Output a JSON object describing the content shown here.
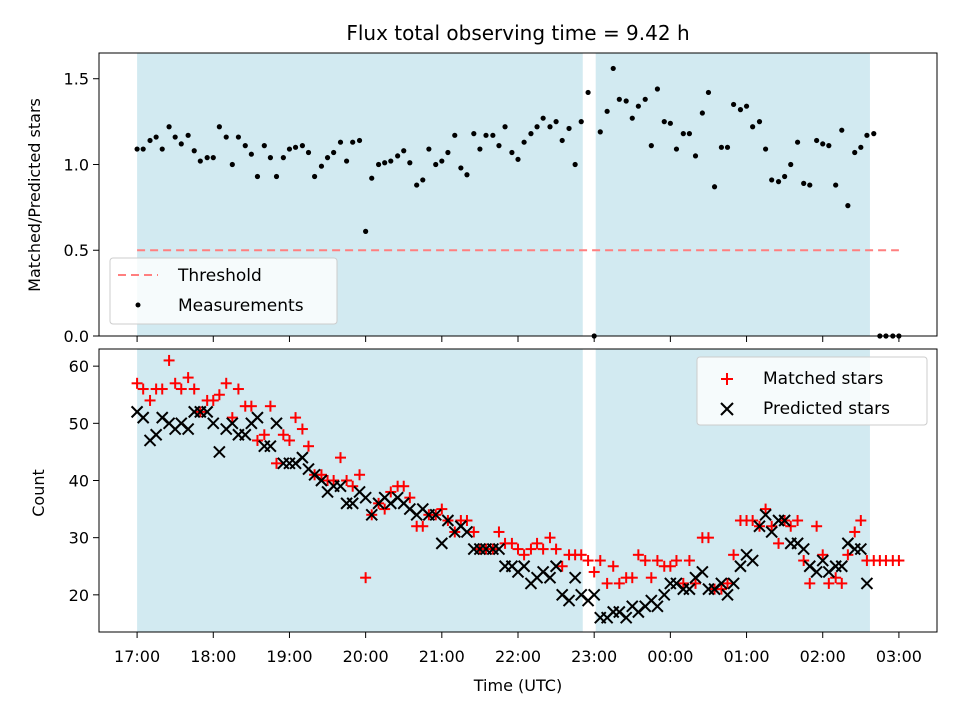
{
  "figure": {
    "title": "Flux total observing time = 9.42 h",
    "xlabel": "Time (UTC)",
    "x_ticks": [
      "17:00",
      "18:00",
      "19:00",
      "20:00",
      "21:00",
      "22:00",
      "23:00",
      "00:00",
      "01:00",
      "02:00",
      "03:00"
    ],
    "x_range_hours": [
      16.5,
      27.5
    ],
    "colors": {
      "shade": "#add8e6",
      "threshold": "#ff7f7f",
      "matched": "#ff0000",
      "predicted": "#000000",
      "measure": "#000000"
    }
  },
  "chart_data": [
    {
      "type": "scatter",
      "name": "ratio",
      "ylabel": "Matched/Predicted stars",
      "ylim": [
        0,
        1.65
      ],
      "y_ticks": [
        "0.0",
        "0.5",
        "1.0",
        "1.5"
      ],
      "y_tick_values": [
        0,
        0.5,
        1.0,
        1.5
      ],
      "shaded_intervals_hours": [
        [
          17.0,
          22.85
        ],
        [
          23.02,
          26.62
        ]
      ],
      "threshold": {
        "label": "Threshold",
        "value": 0.5,
        "x_range_hours": [
          17.0,
          27.0
        ]
      },
      "measurement_label": "Measurements",
      "measurements": {
        "t": [
          17.0,
          17.08,
          17.17,
          17.25,
          17.33,
          17.42,
          17.5,
          17.58,
          17.67,
          17.75,
          17.83,
          17.92,
          18.0,
          18.08,
          18.17,
          18.25,
          18.33,
          18.42,
          18.5,
          18.58,
          18.67,
          18.75,
          18.83,
          18.92,
          19.0,
          19.08,
          19.17,
          19.25,
          19.33,
          19.42,
          19.5,
          19.58,
          19.67,
          19.75,
          19.83,
          19.92,
          20.0,
          20.08,
          20.17,
          20.25,
          20.33,
          20.42,
          20.5,
          20.58,
          20.67,
          20.75,
          20.83,
          20.92,
          21.0,
          21.08,
          21.17,
          21.25,
          21.33,
          21.42,
          21.5,
          21.58,
          21.67,
          21.75,
          21.83,
          21.92,
          22.0,
          22.08,
          22.17,
          22.25,
          22.33,
          22.42,
          22.5,
          22.58,
          22.67,
          22.75,
          22.83,
          22.92,
          23.0,
          23.08,
          23.17,
          23.25,
          23.33,
          23.42,
          23.5,
          23.58,
          23.67,
          23.75,
          23.83,
          23.92,
          24.0,
          24.08,
          24.17,
          24.25,
          24.33,
          24.42,
          24.5,
          24.58,
          24.67,
          24.75,
          24.83,
          24.92,
          25.0,
          25.08,
          25.17,
          25.25,
          25.33,
          25.42,
          25.5,
          25.58,
          25.67,
          25.75,
          25.83,
          25.92,
          26.0,
          26.08,
          26.17,
          26.25,
          26.33,
          26.42,
          26.5,
          26.58,
          26.67,
          26.75,
          26.83,
          26.92,
          27.0
        ],
        "y": [
          1.09,
          1.09,
          1.14,
          1.16,
          1.09,
          1.22,
          1.16,
          1.12,
          1.17,
          1.08,
          1.02,
          1.04,
          1.04,
          1.22,
          1.16,
          1.0,
          1.16,
          1.11,
          1.06,
          0.93,
          1.11,
          1.04,
          0.93,
          1.04,
          1.09,
          1.1,
          1.11,
          1.07,
          0.93,
          0.99,
          1.04,
          1.07,
          1.13,
          1.02,
          1.13,
          1.14,
          0.61,
          0.92,
          1.0,
          1.01,
          1.02,
          1.05,
          1.08,
          1.01,
          0.88,
          0.91,
          1.09,
          1.0,
          1.02,
          1.07,
          1.17,
          0.98,
          0.94,
          1.18,
          1.09,
          1.17,
          1.17,
          1.11,
          1.22,
          1.07,
          1.03,
          1.13,
          1.18,
          1.22,
          1.27,
          1.22,
          1.25,
          1.14,
          1.21,
          1.0,
          1.25,
          1.42,
          0.0,
          1.19,
          1.31,
          1.56,
          1.38,
          1.37,
          1.27,
          1.34,
          1.38,
          1.11,
          1.44,
          1.25,
          1.24,
          1.09,
          1.18,
          1.18,
          1.05,
          1.3,
          1.42,
          0.87,
          1.1,
          1.1,
          1.35,
          1.32,
          1.34,
          1.22,
          1.25,
          1.09,
          0.91,
          0.9,
          0.93,
          1.0,
          1.13,
          0.89,
          0.88,
          1.14,
          1.12,
          1.11,
          0.88,
          1.2,
          0.76,
          1.07,
          1.1,
          1.17,
          1.18,
          0.0,
          0.0,
          0.0,
          0.0
        ]
      }
    },
    {
      "type": "scatter",
      "name": "counts",
      "ylabel": "Count",
      "ylim": [
        13.5,
        63
      ],
      "y_ticks": [
        "20",
        "30",
        "40",
        "50",
        "60"
      ],
      "y_tick_values": [
        20,
        30,
        40,
        50,
        60
      ],
      "shaded_intervals_hours": [
        [
          17.0,
          22.85
        ],
        [
          23.02,
          26.62
        ]
      ],
      "series": [
        {
          "name": "Matched stars",
          "marker": "+",
          "t": [
            17.0,
            17.08,
            17.17,
            17.25,
            17.33,
            17.42,
            17.5,
            17.58,
            17.67,
            17.75,
            17.83,
            17.92,
            18.0,
            18.08,
            18.17,
            18.25,
            18.33,
            18.42,
            18.5,
            18.58,
            18.67,
            18.75,
            18.83,
            18.92,
            19.0,
            19.08,
            19.17,
            19.25,
            19.33,
            19.42,
            19.5,
            19.58,
            19.67,
            19.75,
            19.83,
            19.92,
            20.0,
            20.08,
            20.17,
            20.25,
            20.33,
            20.42,
            20.5,
            20.58,
            20.67,
            20.75,
            20.83,
            20.92,
            21.0,
            21.08,
            21.17,
            21.25,
            21.33,
            21.42,
            21.5,
            21.58,
            21.67,
            21.75,
            21.83,
            21.92,
            22.0,
            22.08,
            22.17,
            22.25,
            22.33,
            22.42,
            22.5,
            22.58,
            22.67,
            22.75,
            22.83,
            22.92,
            23.0,
            23.08,
            23.17,
            23.25,
            23.33,
            23.42,
            23.5,
            23.58,
            23.67,
            23.75,
            23.83,
            23.92,
            24.0,
            24.08,
            24.17,
            24.25,
            24.33,
            24.42,
            24.5,
            24.58,
            24.67,
            24.75,
            24.83,
            24.92,
            25.0,
            25.08,
            25.17,
            25.25,
            25.33,
            25.42,
            25.5,
            25.58,
            25.67,
            25.75,
            25.83,
            25.92,
            26.0,
            26.08,
            26.17,
            26.25,
            26.33,
            26.42,
            26.5,
            26.58,
            26.67,
            26.75,
            26.83,
            26.92,
            27.0
          ],
          "y": [
            57,
            56,
            54,
            56,
            56,
            61,
            57,
            56,
            58,
            56,
            52,
            54,
            54,
            55,
            57,
            51,
            56,
            53,
            53,
            47,
            48,
            53,
            43,
            48,
            47,
            51,
            49,
            46,
            41,
            41,
            40,
            40,
            44,
            40,
            39,
            41,
            23,
            34,
            36,
            35,
            38,
            39,
            39,
            37,
            32,
            32,
            34,
            34,
            35,
            33,
            31,
            33,
            33,
            31,
            28,
            28,
            28,
            31,
            29,
            29,
            28,
            27,
            28,
            29,
            28,
            30,
            28,
            25,
            27,
            27,
            27,
            26,
            24,
            26,
            22,
            25,
            22,
            23,
            23,
            27,
            26,
            23,
            26,
            25,
            25,
            26,
            22,
            26,
            22,
            30,
            30,
            21,
            21,
            22,
            27,
            33,
            33,
            33,
            32,
            35,
            32,
            29,
            33,
            32,
            33,
            26,
            22,
            32,
            27,
            22,
            23,
            22,
            27,
            31,
            33,
            26,
            26,
            26,
            26,
            26,
            26
          ]
        },
        {
          "name": "Predicted stars",
          "marker": "x",
          "t": [
            17.0,
            17.08,
            17.17,
            17.25,
            17.33,
            17.42,
            17.5,
            17.58,
            17.67,
            17.75,
            17.83,
            17.92,
            18.0,
            18.08,
            18.17,
            18.25,
            18.33,
            18.42,
            18.5,
            18.58,
            18.67,
            18.75,
            18.83,
            18.92,
            19.0,
            19.08,
            19.17,
            19.25,
            19.33,
            19.42,
            19.5,
            19.58,
            19.67,
            19.75,
            19.83,
            19.92,
            20.0,
            20.08,
            20.17,
            20.25,
            20.33,
            20.42,
            20.5,
            20.58,
            20.67,
            20.75,
            20.83,
            20.92,
            21.0,
            21.08,
            21.17,
            21.25,
            21.33,
            21.42,
            21.5,
            21.58,
            21.67,
            21.75,
            21.83,
            21.92,
            22.0,
            22.08,
            22.17,
            22.25,
            22.33,
            22.42,
            22.5,
            22.58,
            22.67,
            22.75,
            22.83,
            22.92,
            23.0,
            23.08,
            23.17,
            23.25,
            23.33,
            23.42,
            23.5,
            23.58,
            23.67,
            23.75,
            23.83,
            23.92,
            24.0,
            24.08,
            24.17,
            24.25,
            24.33,
            24.42,
            24.5,
            24.58,
            24.67,
            24.75,
            24.83,
            24.92,
            25.0,
            25.08,
            25.17,
            25.25,
            25.33,
            25.42,
            25.5,
            25.58,
            25.67,
            25.75,
            25.83,
            25.92,
            26.0,
            26.08,
            26.17,
            26.25,
            26.33,
            26.42,
            26.5,
            26.58,
            26.67,
            26.75,
            26.83,
            26.92,
            27.0
          ],
          "y": [
            52,
            51,
            47,
            48,
            51,
            50,
            49,
            50,
            49,
            52,
            52,
            52,
            50,
            45,
            49,
            50,
            48,
            48,
            50,
            51,
            46,
            46,
            50,
            43,
            43,
            43,
            44,
            42,
            41,
            40,
            38,
            39,
            39,
            36,
            36,
            38,
            37,
            34,
            36,
            37,
            36,
            37,
            36,
            35,
            34,
            35,
            34,
            34,
            29,
            33,
            31,
            32,
            31,
            28,
            28,
            28,
            28,
            28,
            25,
            25,
            24,
            25,
            22,
            23,
            24,
            23,
            25,
            20,
            19,
            23,
            20,
            19,
            20,
            16,
            16,
            17,
            17,
            16,
            18,
            17,
            18,
            19,
            18,
            20,
            22,
            22,
            21,
            21,
            23,
            24,
            21,
            21,
            22,
            20,
            22,
            25,
            27,
            26,
            32,
            34,
            31,
            33,
            33,
            29,
            29,
            28,
            25,
            24,
            26,
            24,
            25,
            25,
            29,
            28,
            28,
            22,
            null,
            null,
            null,
            null,
            null
          ]
        }
      ],
      "legend_position": "upper right"
    }
  ]
}
